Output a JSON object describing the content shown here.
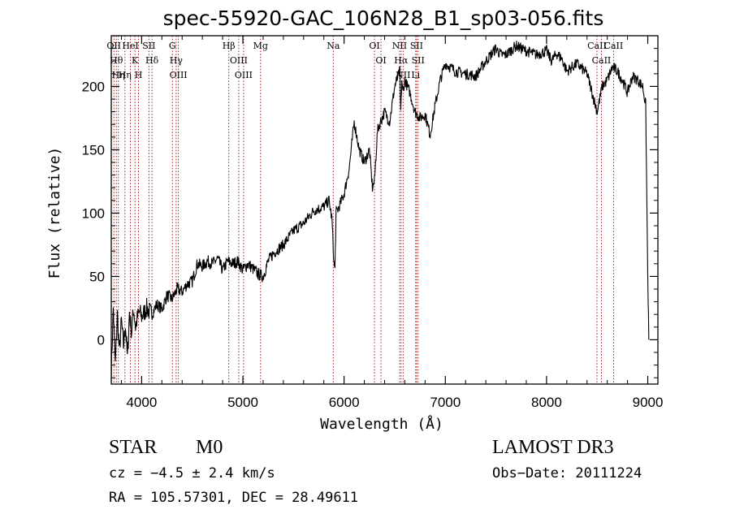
{
  "chart_data": {
    "type": "line",
    "title": "spec-55920-GAC_106N28_B1_sp03-056.fits",
    "xlabel": "Wavelength (Å)",
    "ylabel": "Flux (relative)",
    "xlim": [
      3700,
      9100
    ],
    "ylim": [
      -35,
      240
    ],
    "xticks": [
      4000,
      5000,
      6000,
      7000,
      8000,
      9000
    ],
    "xtick_labels": [
      "4000",
      "5000",
      "6000",
      "7000",
      "8000",
      "9000"
    ],
    "yticks": [
      0,
      50,
      100,
      150,
      200
    ],
    "ytick_labels": [
      "0",
      "50",
      "100",
      "150",
      "200"
    ],
    "series": [
      {
        "name": "flux",
        "x": [
          3700,
          3720,
          3740,
          3760,
          3780,
          3800,
          3820,
          3840,
          3860,
          3880,
          3900,
          3920,
          3940,
          3960,
          3980,
          4000,
          4050,
          4100,
          4150,
          4200,
          4250,
          4300,
          4350,
          4400,
          4450,
          4500,
          4550,
          4600,
          4650,
          4700,
          4750,
          4800,
          4850,
          4900,
          4950,
          5000,
          5050,
          5100,
          5150,
          5200,
          5250,
          5300,
          5400,
          5500,
          5600,
          5700,
          5800,
          5850,
          5880,
          5900,
          5910,
          5920,
          5950,
          6000,
          6050,
          6100,
          6150,
          6200,
          6250,
          6280,
          6300,
          6330,
          6350,
          6400,
          6450,
          6500,
          6550,
          6560,
          6570,
          6580,
          6600,
          6650,
          6700,
          6750,
          6800,
          6850,
          6900,
          6950,
          7000,
          7100,
          7200,
          7300,
          7400,
          7500,
          7550,
          7600,
          7700,
          7800,
          7900,
          8000,
          8050,
          8100,
          8150,
          8200,
          8300,
          8400,
          8450,
          8500,
          8550,
          8600,
          8650,
          8700,
          8750,
          8800,
          8850,
          8900,
          8950,
          8980,
          9000,
          9010
        ],
        "y": [
          -25,
          25,
          -20,
          20,
          -10,
          15,
          -5,
          12,
          -15,
          22,
          5,
          25,
          10,
          18,
          22,
          18,
          25,
          20,
          28,
          24,
          35,
          32,
          40,
          38,
          44,
          46,
          60,
          58,
          62,
          60,
          64,
          55,
          62,
          60,
          62,
          55,
          60,
          56,
          52,
          50,
          62,
          68,
          75,
          86,
          92,
          102,
          105,
          110,
          95,
          60,
          55,
          100,
          105,
          115,
          135,
          172,
          150,
          140,
          150,
          120,
          125,
          165,
          170,
          180,
          172,
          200,
          212,
          180,
          205,
          195,
          205,
          195,
          180,
          175,
          178,
          162,
          185,
          205,
          218,
          212,
          210,
          208,
          220,
          230,
          225,
          225,
          232,
          228,
          225,
          228,
          220,
          226,
          222,
          212,
          218,
          210,
          195,
          180,
          200,
          205,
          215,
          212,
          205,
          195,
          208,
          205,
          200,
          185,
          50,
          0
        ]
      }
    ],
    "lines": [
      {
        "wl": 3726,
        "label": "OII"
      },
      {
        "wl": 3750,
        "label": "Hθ"
      },
      {
        "wl": 3770,
        "label": "Hη"
      },
      {
        "wl": 3835,
        "label": "Hη"
      },
      {
        "wl": 3889,
        "label": "HeI"
      },
      {
        "wl": 3934,
        "label": "K"
      },
      {
        "wl": 3969,
        "label": "H"
      },
      {
        "wl": 4072,
        "label": "SII"
      },
      {
        "wl": 4102,
        "label": "Hδ"
      },
      {
        "wl": 4304,
        "label": "G"
      },
      {
        "wl": 4341,
        "label": "Hγ"
      },
      {
        "wl": 4363,
        "label": "OIII"
      },
      {
        "wl": 4861,
        "label": "Hβ"
      },
      {
        "wl": 4959,
        "label": "OIII"
      },
      {
        "wl": 5007,
        "label": "OIII"
      },
      {
        "wl": 5175,
        "label": "Mg"
      },
      {
        "wl": 5893,
        "label": "Na"
      },
      {
        "wl": 6300,
        "label": "OI"
      },
      {
        "wl": 6364,
        "label": "OI"
      },
      {
        "wl": 6548,
        "label": "NII"
      },
      {
        "wl": 6563,
        "label": "Hα"
      },
      {
        "wl": 6583,
        "label": "NII"
      },
      {
        "wl": 6707,
        "label": "Li"
      },
      {
        "wl": 6716,
        "label": "SII"
      },
      {
        "wl": 6731,
        "label": "SII"
      },
      {
        "wl": 8498,
        "label": "CaII"
      },
      {
        "wl": 8542,
        "label": "CaII"
      },
      {
        "wl": 8662,
        "label": "CaII"
      }
    ]
  },
  "labels": {
    "object_class": "STAR",
    "subclass": "M0",
    "survey": "LAMOST DR3",
    "cz": "cz = −4.5 ± 2.4 km/s",
    "obs_date": "Obs−Date: 20111224",
    "coords": "RA = 105.57301, DEC =  28.49611"
  }
}
